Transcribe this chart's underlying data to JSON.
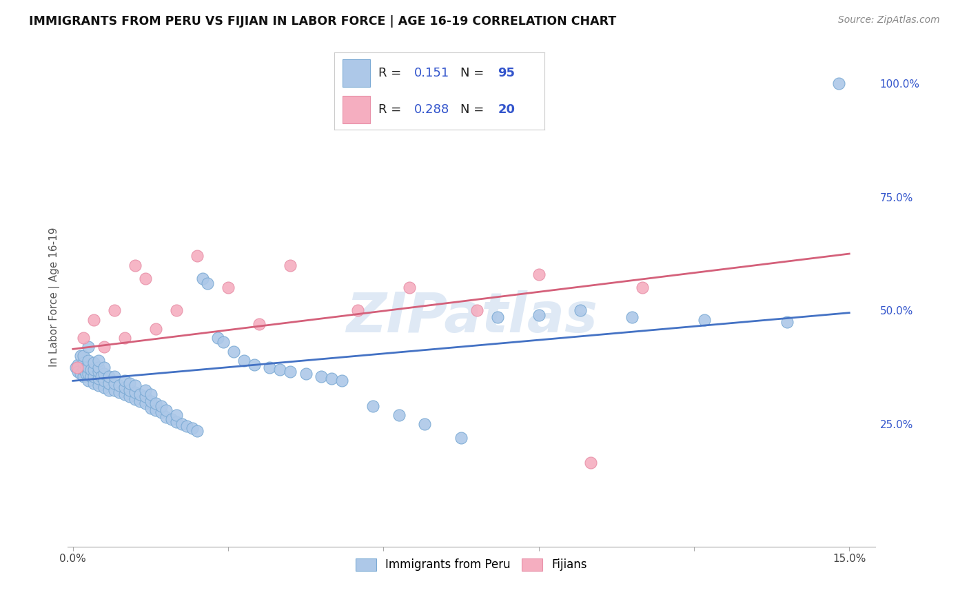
{
  "title": "IMMIGRANTS FROM PERU VS FIJIAN IN LABOR FORCE | AGE 16-19 CORRELATION CHART",
  "source": "Source: ZipAtlas.com",
  "ylabel": "In Labor Force | Age 16-19",
  "xlim_min": -0.001,
  "xlim_max": 0.155,
  "ylim_min": -0.02,
  "ylim_max": 1.08,
  "xtick_positions": [
    0.0,
    0.03,
    0.06,
    0.09,
    0.12,
    0.15
  ],
  "xtick_labels": [
    "0.0%",
    "",
    "",
    "",
    "",
    "15.0%"
  ],
  "ytick_positions": [
    0.0,
    0.25,
    0.5,
    0.75,
    1.0
  ],
  "ytick_labels": [
    "",
    "25.0%",
    "50.0%",
    "75.0%",
    "100.0%"
  ],
  "watermark": "ZIPatlas",
  "peru_color": "#adc8e8",
  "fijian_color": "#f5aec0",
  "peru_edge_color": "#7baad4",
  "fijian_edge_color": "#e890a8",
  "peru_line_color": "#4472c4",
  "fijian_line_color": "#d4607a",
  "peru_R": 0.151,
  "peru_N": 95,
  "fijian_R": 0.288,
  "fijian_N": 20,
  "legend_R_color": "#1a1aff",
  "legend_N_color": "#1a1aff",
  "peru_x": [
    0.0005,
    0.001,
    0.001,
    0.0015,
    0.0015,
    0.002,
    0.002,
    0.002,
    0.002,
    0.0025,
    0.0025,
    0.003,
    0.003,
    0.003,
    0.003,
    0.003,
    0.0035,
    0.0035,
    0.004,
    0.004,
    0.004,
    0.004,
    0.005,
    0.005,
    0.005,
    0.005,
    0.005,
    0.0055,
    0.006,
    0.006,
    0.006,
    0.006,
    0.007,
    0.007,
    0.007,
    0.008,
    0.008,
    0.008,
    0.009,
    0.009,
    0.01,
    0.01,
    0.01,
    0.011,
    0.011,
    0.011,
    0.012,
    0.012,
    0.012,
    0.013,
    0.013,
    0.014,
    0.014,
    0.014,
    0.015,
    0.015,
    0.015,
    0.016,
    0.016,
    0.017,
    0.017,
    0.018,
    0.018,
    0.019,
    0.02,
    0.02,
    0.021,
    0.022,
    0.023,
    0.024,
    0.025,
    0.026,
    0.028,
    0.029,
    0.031,
    0.033,
    0.035,
    0.038,
    0.04,
    0.042,
    0.045,
    0.048,
    0.05,
    0.052,
    0.058,
    0.063,
    0.068,
    0.075,
    0.082,
    0.09,
    0.098,
    0.108,
    0.122,
    0.138,
    0.148
  ],
  "peru_y": [
    0.375,
    0.38,
    0.365,
    0.36,
    0.4,
    0.355,
    0.37,
    0.385,
    0.4,
    0.36,
    0.375,
    0.345,
    0.36,
    0.375,
    0.39,
    0.42,
    0.355,
    0.37,
    0.34,
    0.355,
    0.37,
    0.385,
    0.335,
    0.35,
    0.365,
    0.375,
    0.39,
    0.355,
    0.33,
    0.345,
    0.36,
    0.375,
    0.325,
    0.34,
    0.355,
    0.325,
    0.34,
    0.355,
    0.32,
    0.335,
    0.315,
    0.33,
    0.345,
    0.31,
    0.325,
    0.34,
    0.305,
    0.32,
    0.335,
    0.3,
    0.315,
    0.295,
    0.31,
    0.325,
    0.285,
    0.3,
    0.315,
    0.28,
    0.295,
    0.275,
    0.29,
    0.265,
    0.28,
    0.26,
    0.255,
    0.27,
    0.25,
    0.245,
    0.24,
    0.235,
    0.57,
    0.56,
    0.44,
    0.43,
    0.41,
    0.39,
    0.38,
    0.375,
    0.37,
    0.365,
    0.36,
    0.355,
    0.35,
    0.345,
    0.29,
    0.27,
    0.25,
    0.22,
    0.485,
    0.49,
    0.5,
    0.485,
    0.48,
    0.475,
    1.0
  ],
  "fijian_x": [
    0.0008,
    0.002,
    0.004,
    0.006,
    0.008,
    0.01,
    0.012,
    0.014,
    0.016,
    0.02,
    0.024,
    0.03,
    0.036,
    0.042,
    0.055,
    0.065,
    0.078,
    0.09,
    0.1,
    0.11
  ],
  "fijian_y": [
    0.375,
    0.44,
    0.48,
    0.42,
    0.5,
    0.44,
    0.6,
    0.57,
    0.46,
    0.5,
    0.62,
    0.55,
    0.47,
    0.6,
    0.5,
    0.55,
    0.5,
    0.58,
    0.165,
    0.55
  ]
}
